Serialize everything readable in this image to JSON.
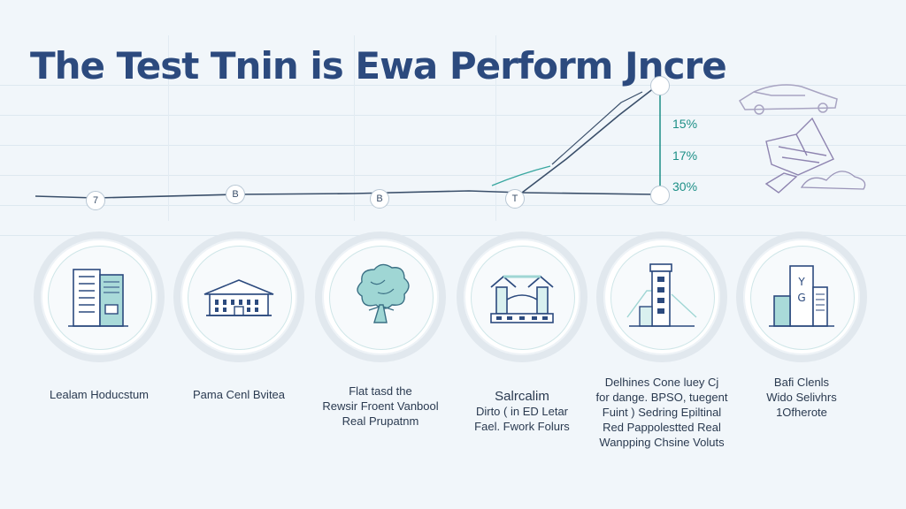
{
  "title": "The Test Tnin is Ewa Perform Jncre",
  "markers": [
    "7",
    "B",
    "B",
    "T",
    ""
  ],
  "percentages": [
    "15%",
    "17%",
    "30%"
  ],
  "stages": [
    {
      "icon": "office-building-icon",
      "lines": [
        "Lealam Hoducstum"
      ]
    },
    {
      "icon": "government-building-icon",
      "lines": [
        "Pama Cenl Bvitea"
      ]
    },
    {
      "icon": "tree-icon",
      "lines": [
        "Flat tasd the",
        "Rewsir Froent Vanbool",
        "Real Prupatnm"
      ]
    },
    {
      "icon": "bridge-icon",
      "lines": [
        "Salrcalim",
        "Dirto ( in ED Letar",
        "Fael. Fwork Folurs"
      ]
    },
    {
      "icon": "tower-icon",
      "lines": [
        "Delhines Cone luey Cj",
        "for dange. BPSO, tuegent",
        "Fuint ) Sedring Epiltinal",
        "Red Pappolestted Real",
        "Wanpping Chsine Voluts"
      ]
    },
    {
      "icon": "skyscraper-icon",
      "lines": [
        "Bafi Clenls",
        "Wido Selivhrs",
        "1Ofherote"
      ]
    }
  ],
  "colors": {
    "title": "#2c4a7e",
    "line": "#3a4f6a",
    "accent": "#1c8f86",
    "teal": "#7cc8cc"
  }
}
